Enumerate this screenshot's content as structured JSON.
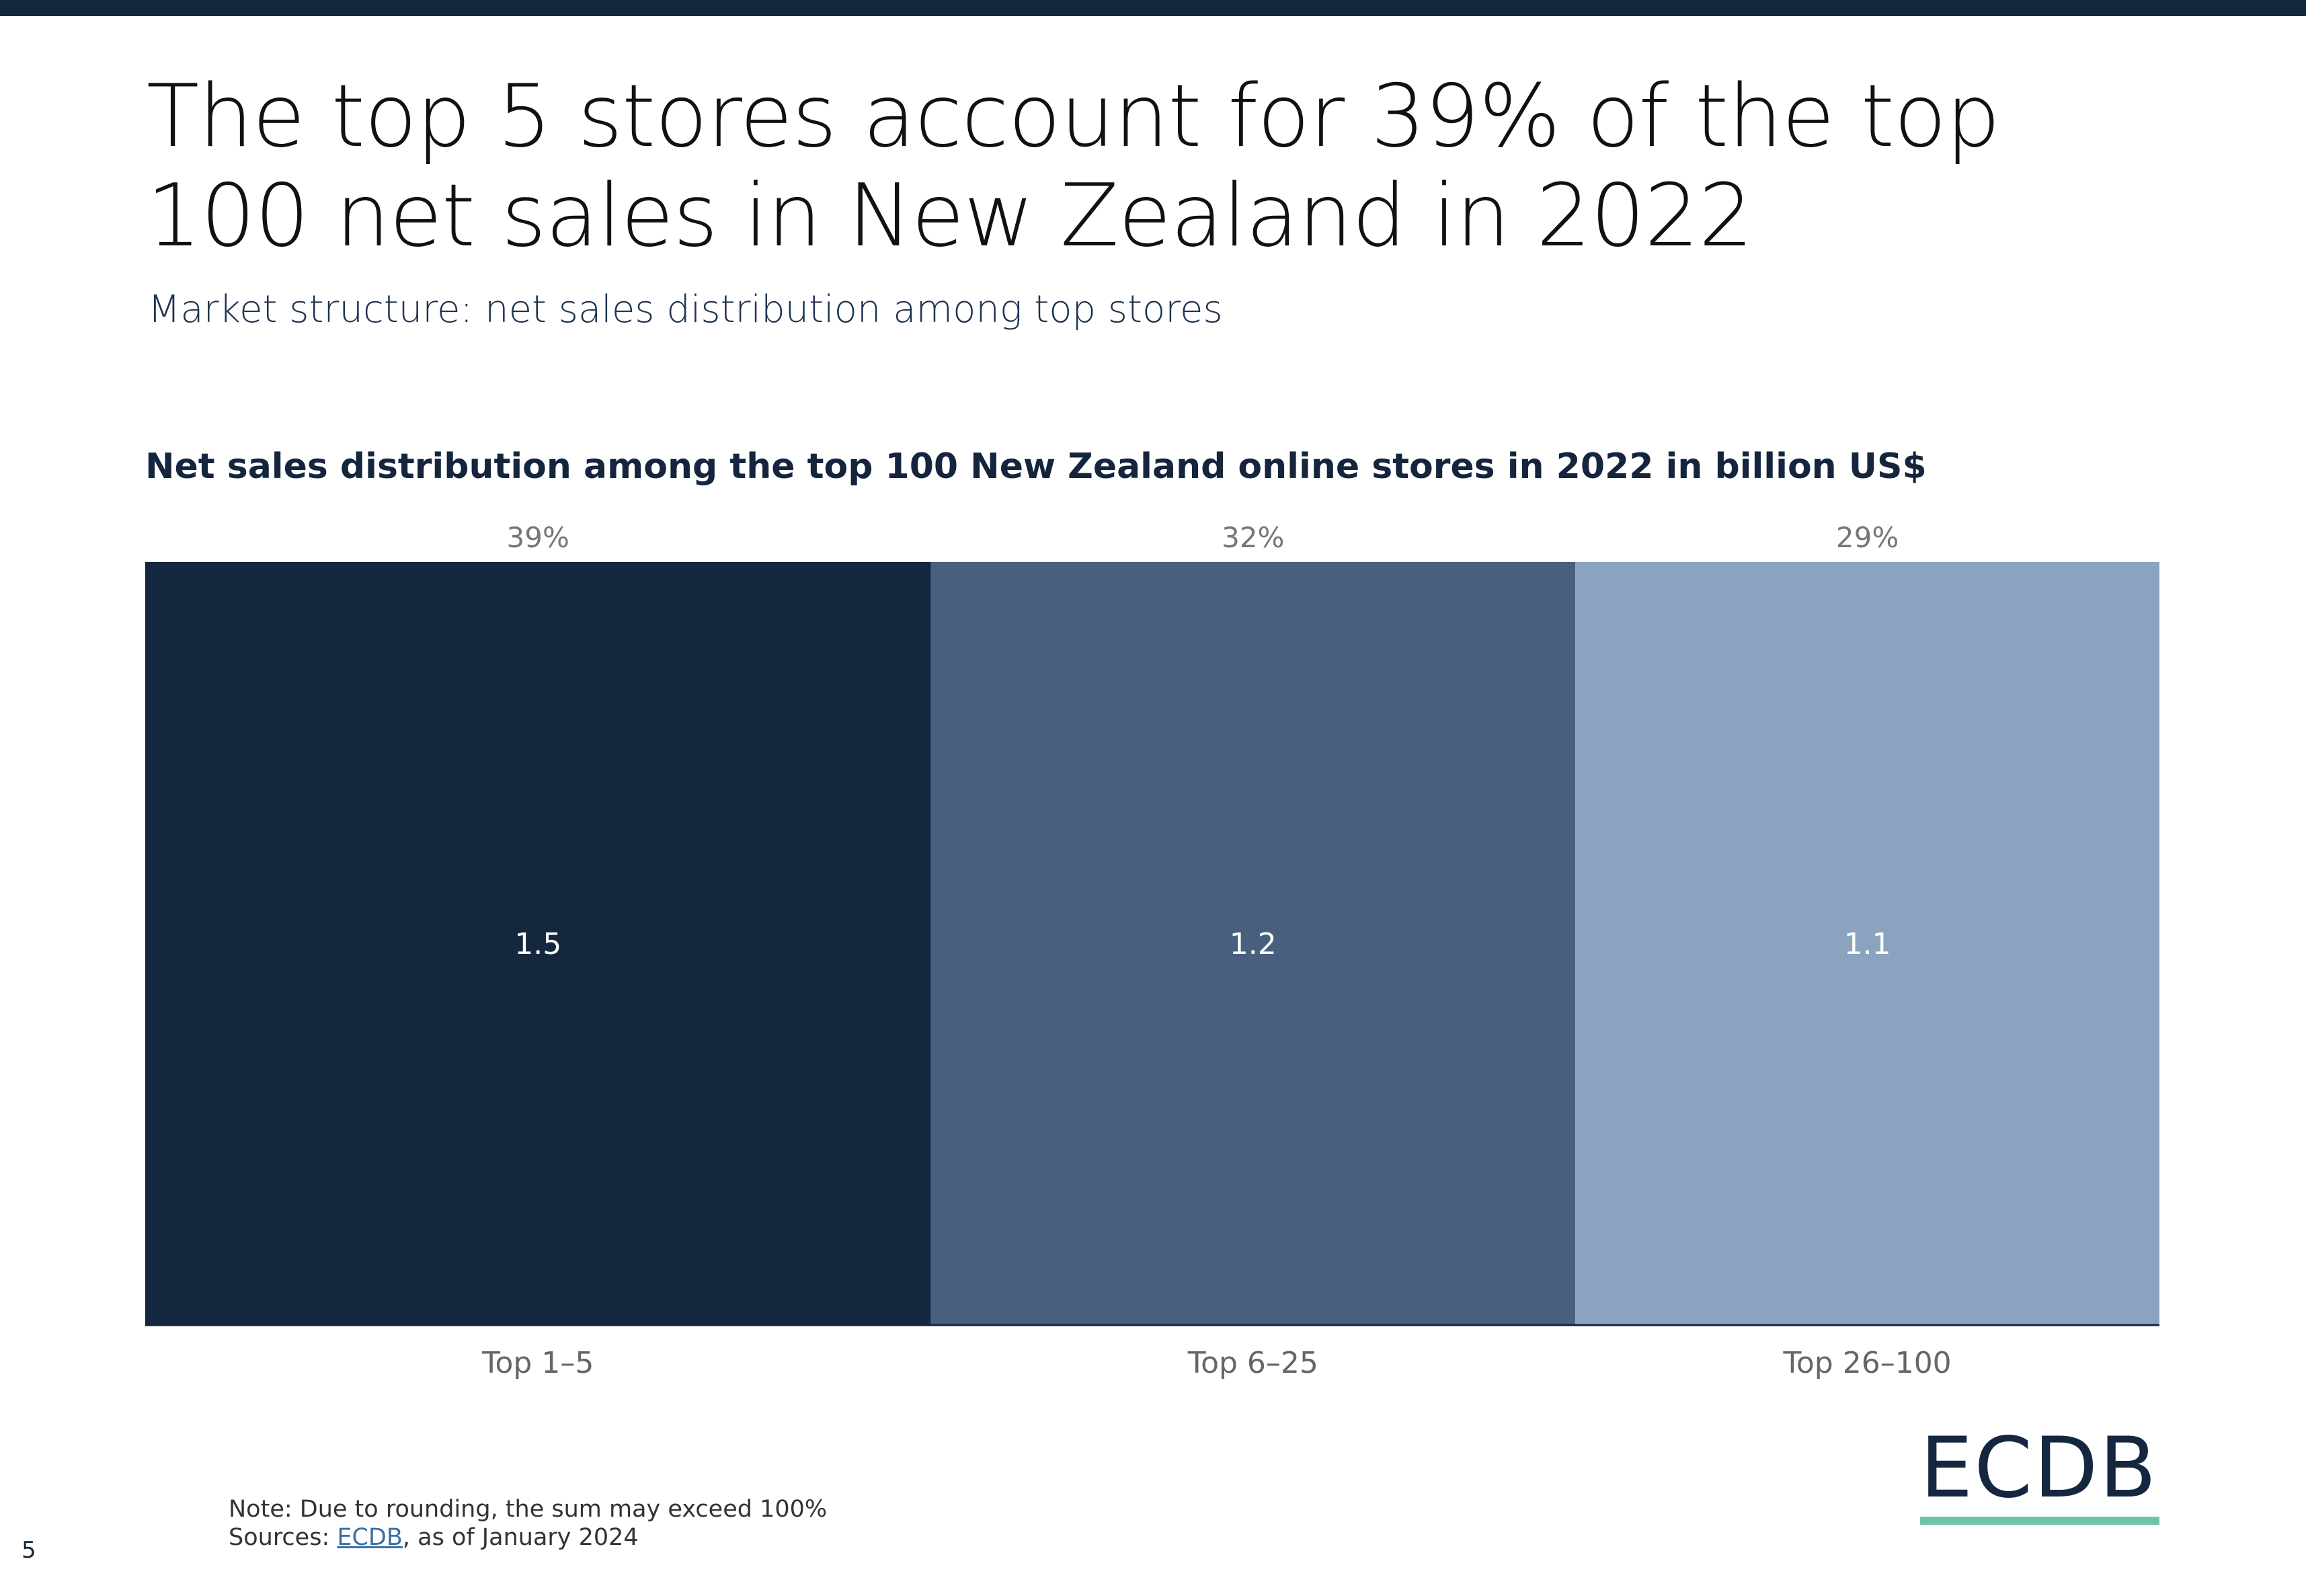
{
  "page": {
    "title": "The top 5 stores account for 39% of the top 100 net sales in New Zealand in 2022",
    "subtitle": "Market structure: net sales distribution among top stores",
    "page_number": "5",
    "note": "Note: Due to rounding, the sum may exceed 100%",
    "sources_prefix": "Sources: ",
    "sources_link": "ECDB",
    "sources_suffix": ", as of January 2024",
    "logo": "ECDB"
  },
  "colors": {
    "segment_1": "#14273f",
    "segment_2": "#48607e",
    "segment_3": "#8aa3bf",
    "accent_line": "#6dc5a8"
  },
  "chart_data": {
    "type": "bar",
    "title": "Net sales distribution among the top 100 New Zealand online stores in 2022 in billion US$",
    "categories": [
      "Top 1–5",
      "Top 6–25",
      "Top 26–100"
    ],
    "values": [
      1.5,
      1.2,
      1.1
    ],
    "value_labels": [
      "1.5",
      "1.2",
      "1.1"
    ],
    "shares": [
      39,
      32,
      29
    ],
    "share_labels": [
      "39%",
      "32%",
      "29%"
    ],
    "grid": false,
    "legend": "none"
  }
}
